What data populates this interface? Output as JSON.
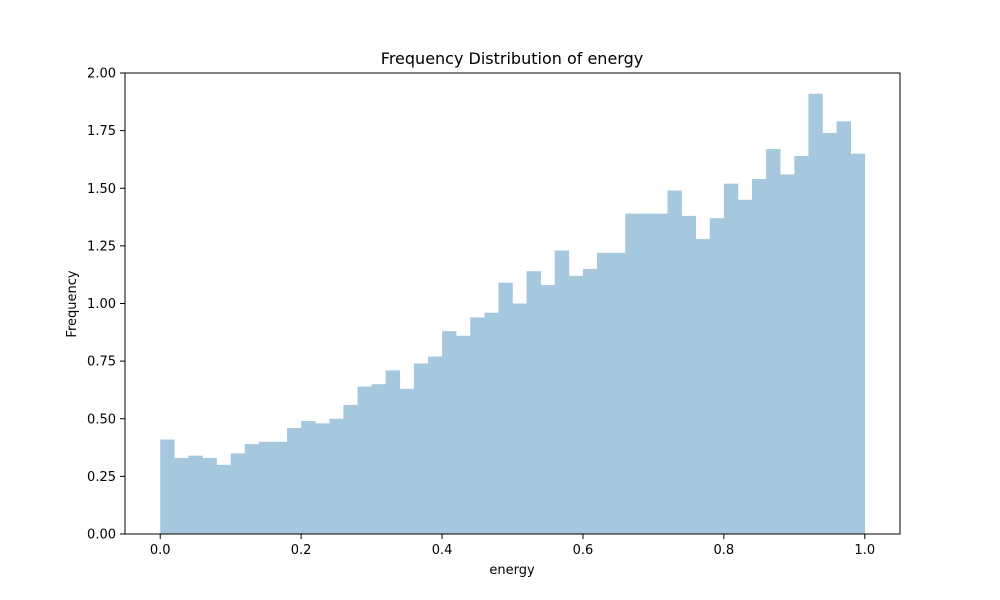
{
  "chart_data": {
    "type": "bar",
    "title": "Frequency Distribution of energy",
    "xlabel": "energy",
    "ylabel": "Frequency",
    "xlim": [
      -0.05,
      1.05
    ],
    "ylim": [
      0,
      2.0
    ],
    "x_ticks": [
      {
        "value": 0.0,
        "label": "0.0"
      },
      {
        "value": 0.2,
        "label": "0.2"
      },
      {
        "value": 0.4,
        "label": "0.4"
      },
      {
        "value": 0.6,
        "label": "0.6"
      },
      {
        "value": 0.8,
        "label": "0.8"
      },
      {
        "value": 1.0,
        "label": "1.0"
      }
    ],
    "y_ticks": [
      {
        "value": 0.0,
        "label": "0.00"
      },
      {
        "value": 0.25,
        "label": "0.25"
      },
      {
        "value": 0.5,
        "label": "0.50"
      },
      {
        "value": 0.75,
        "label": "0.75"
      },
      {
        "value": 1.0,
        "label": "1.00"
      },
      {
        "value": 1.25,
        "label": "1.25"
      },
      {
        "value": 1.5,
        "label": "1.50"
      },
      {
        "value": 1.75,
        "label": "1.75"
      },
      {
        "value": 2.0,
        "label": "2.00"
      }
    ],
    "bin_edges_range": [
      0.0,
      1.0
    ],
    "bin_count": 50,
    "values": [
      0.41,
      0.33,
      0.34,
      0.33,
      0.3,
      0.35,
      0.39,
      0.4,
      0.4,
      0.46,
      0.49,
      0.48,
      0.5,
      0.56,
      0.64,
      0.65,
      0.71,
      0.63,
      0.74,
      0.77,
      0.88,
      0.86,
      0.94,
      0.96,
      1.09,
      1.0,
      1.14,
      1.08,
      1.23,
      1.12,
      1.15,
      1.22,
      1.22,
      1.39,
      1.39,
      1.39,
      1.49,
      1.38,
      1.28,
      1.37,
      1.52,
      1.45,
      1.54,
      1.67,
      1.56,
      1.64,
      1.91,
      1.74,
      1.79,
      1.65
    ],
    "bar_color": "#a6c8df",
    "grid": false,
    "legend": "none"
  }
}
